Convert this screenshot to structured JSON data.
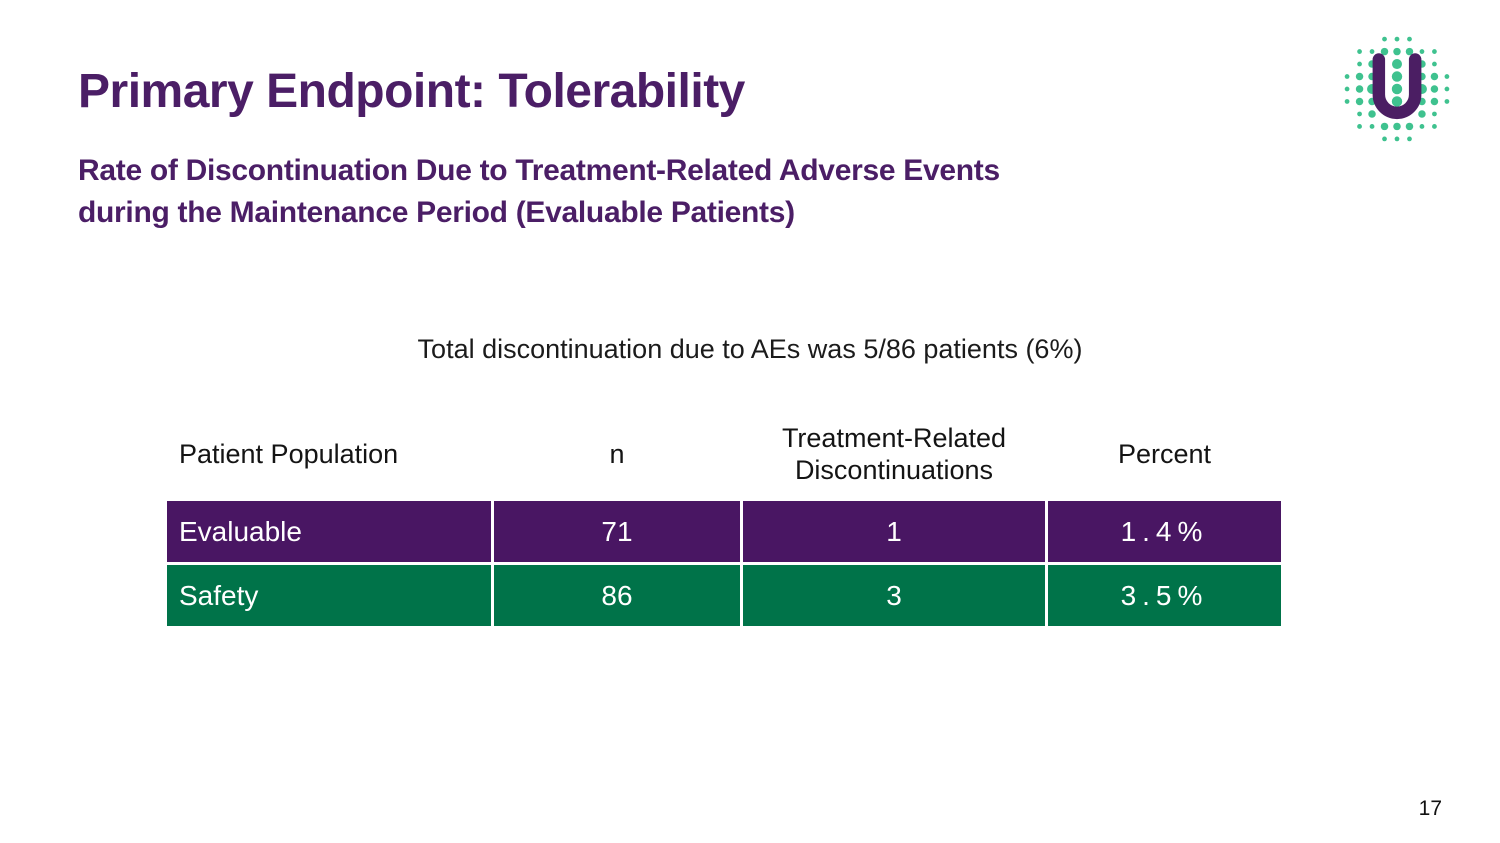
{
  "slide": {
    "title": "Primary Endpoint: Tolerability",
    "subtitle_line1": "Rate of Discontinuation Due to Treatment-Related Adverse Events",
    "subtitle_line2": "during the Maintenance Period (Evaluable Patients)",
    "statement": "Total discontinuation due to AEs was 5/86 patients (6%)",
    "page_number": "17"
  },
  "logo": {
    "name": "dotted-circle-u-logo",
    "letter": "U",
    "dot_color": "#3FC28F",
    "letter_color": "#4B1E63"
  },
  "colors": {
    "accent_purple": "#4B1E66",
    "row_purple": "#491663",
    "row_green": "#007349",
    "header_text": "#141414",
    "row_text": "#FFFFFF"
  },
  "table": {
    "columns": [
      "Patient Population",
      "n",
      "Treatment-Related Discontinuations",
      "Percent"
    ],
    "rows": [
      {
        "population": "Evaluable",
        "n": "71",
        "discontinuations": "1",
        "percent": "1.4%",
        "color": "#491663"
      },
      {
        "population": "Safety",
        "n": "86",
        "discontinuations": "3",
        "percent": "3.5%",
        "color": "#007349"
      }
    ]
  }
}
